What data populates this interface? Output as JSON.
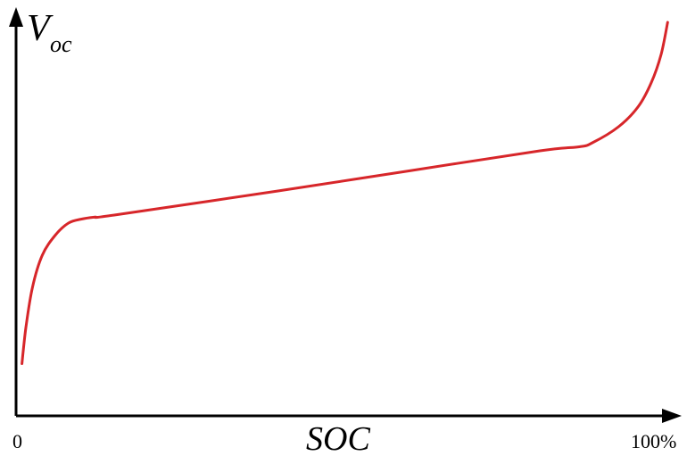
{
  "chart_data": {
    "type": "line",
    "ylabel_main": "V",
    "ylabel_sub": "oc",
    "xlabel": "SOC",
    "x_tick_start": "0",
    "x_tick_end": "100%",
    "xlim": [
      0,
      100
    ],
    "ylim": [
      0,
      100
    ],
    "grid": false,
    "legend": "none",
    "colors": {
      "curve": "#d7262a",
      "axes": "#000000"
    },
    "series": [
      {
        "x": [
          0.9,
          1.5,
          2.5,
          4,
          6,
          8,
          10,
          12,
          15,
          40,
          60,
          80,
          86,
          88,
          92,
          95,
          97,
          98.5,
          99.5
        ],
        "values": [
          13,
          22,
          32,
          40,
          45,
          48,
          49,
          49.5,
          50,
          56,
          61,
          66,
          67,
          68,
          72,
          77,
          83,
          90,
          98
        ]
      }
    ]
  }
}
